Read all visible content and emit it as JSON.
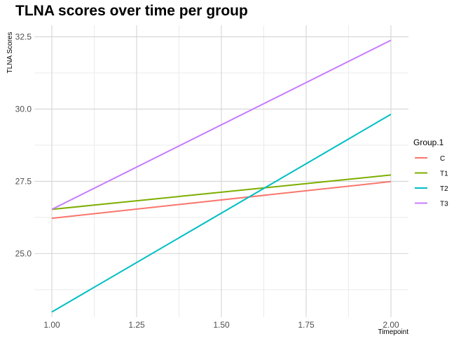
{
  "chart_data": {
    "type": "line",
    "title": "TLNA scores over time per group",
    "xlabel": "Timepoint",
    "ylabel": "TLNA Scores",
    "xlim": [
      1.0,
      2.0
    ],
    "ylim": [
      22.8,
      32.9
    ],
    "x_ticks": [
      "1.00",
      "1.25",
      "1.50",
      "1.75",
      "2.00"
    ],
    "y_ticks": [
      "25.0",
      "27.5",
      "30.0",
      "32.5"
    ],
    "grid": true,
    "legend": {
      "title": "Group.1",
      "position": "right"
    },
    "series": [
      {
        "name": "C",
        "color": "#F8766D",
        "x": [
          1.0,
          2.0
        ],
        "y": [
          26.22,
          27.49
        ]
      },
      {
        "name": "T1",
        "color": "#7CAE00",
        "x": [
          1.0,
          2.0
        ],
        "y": [
          26.53,
          27.72
        ]
      },
      {
        "name": "T2",
        "color": "#00BFC4",
        "x": [
          1.0,
          2.0
        ],
        "y": [
          22.98,
          29.82
        ]
      },
      {
        "name": "T3",
        "color": "#C77CFF",
        "x": [
          1.0,
          2.0
        ],
        "y": [
          26.53,
          32.38
        ]
      }
    ]
  }
}
